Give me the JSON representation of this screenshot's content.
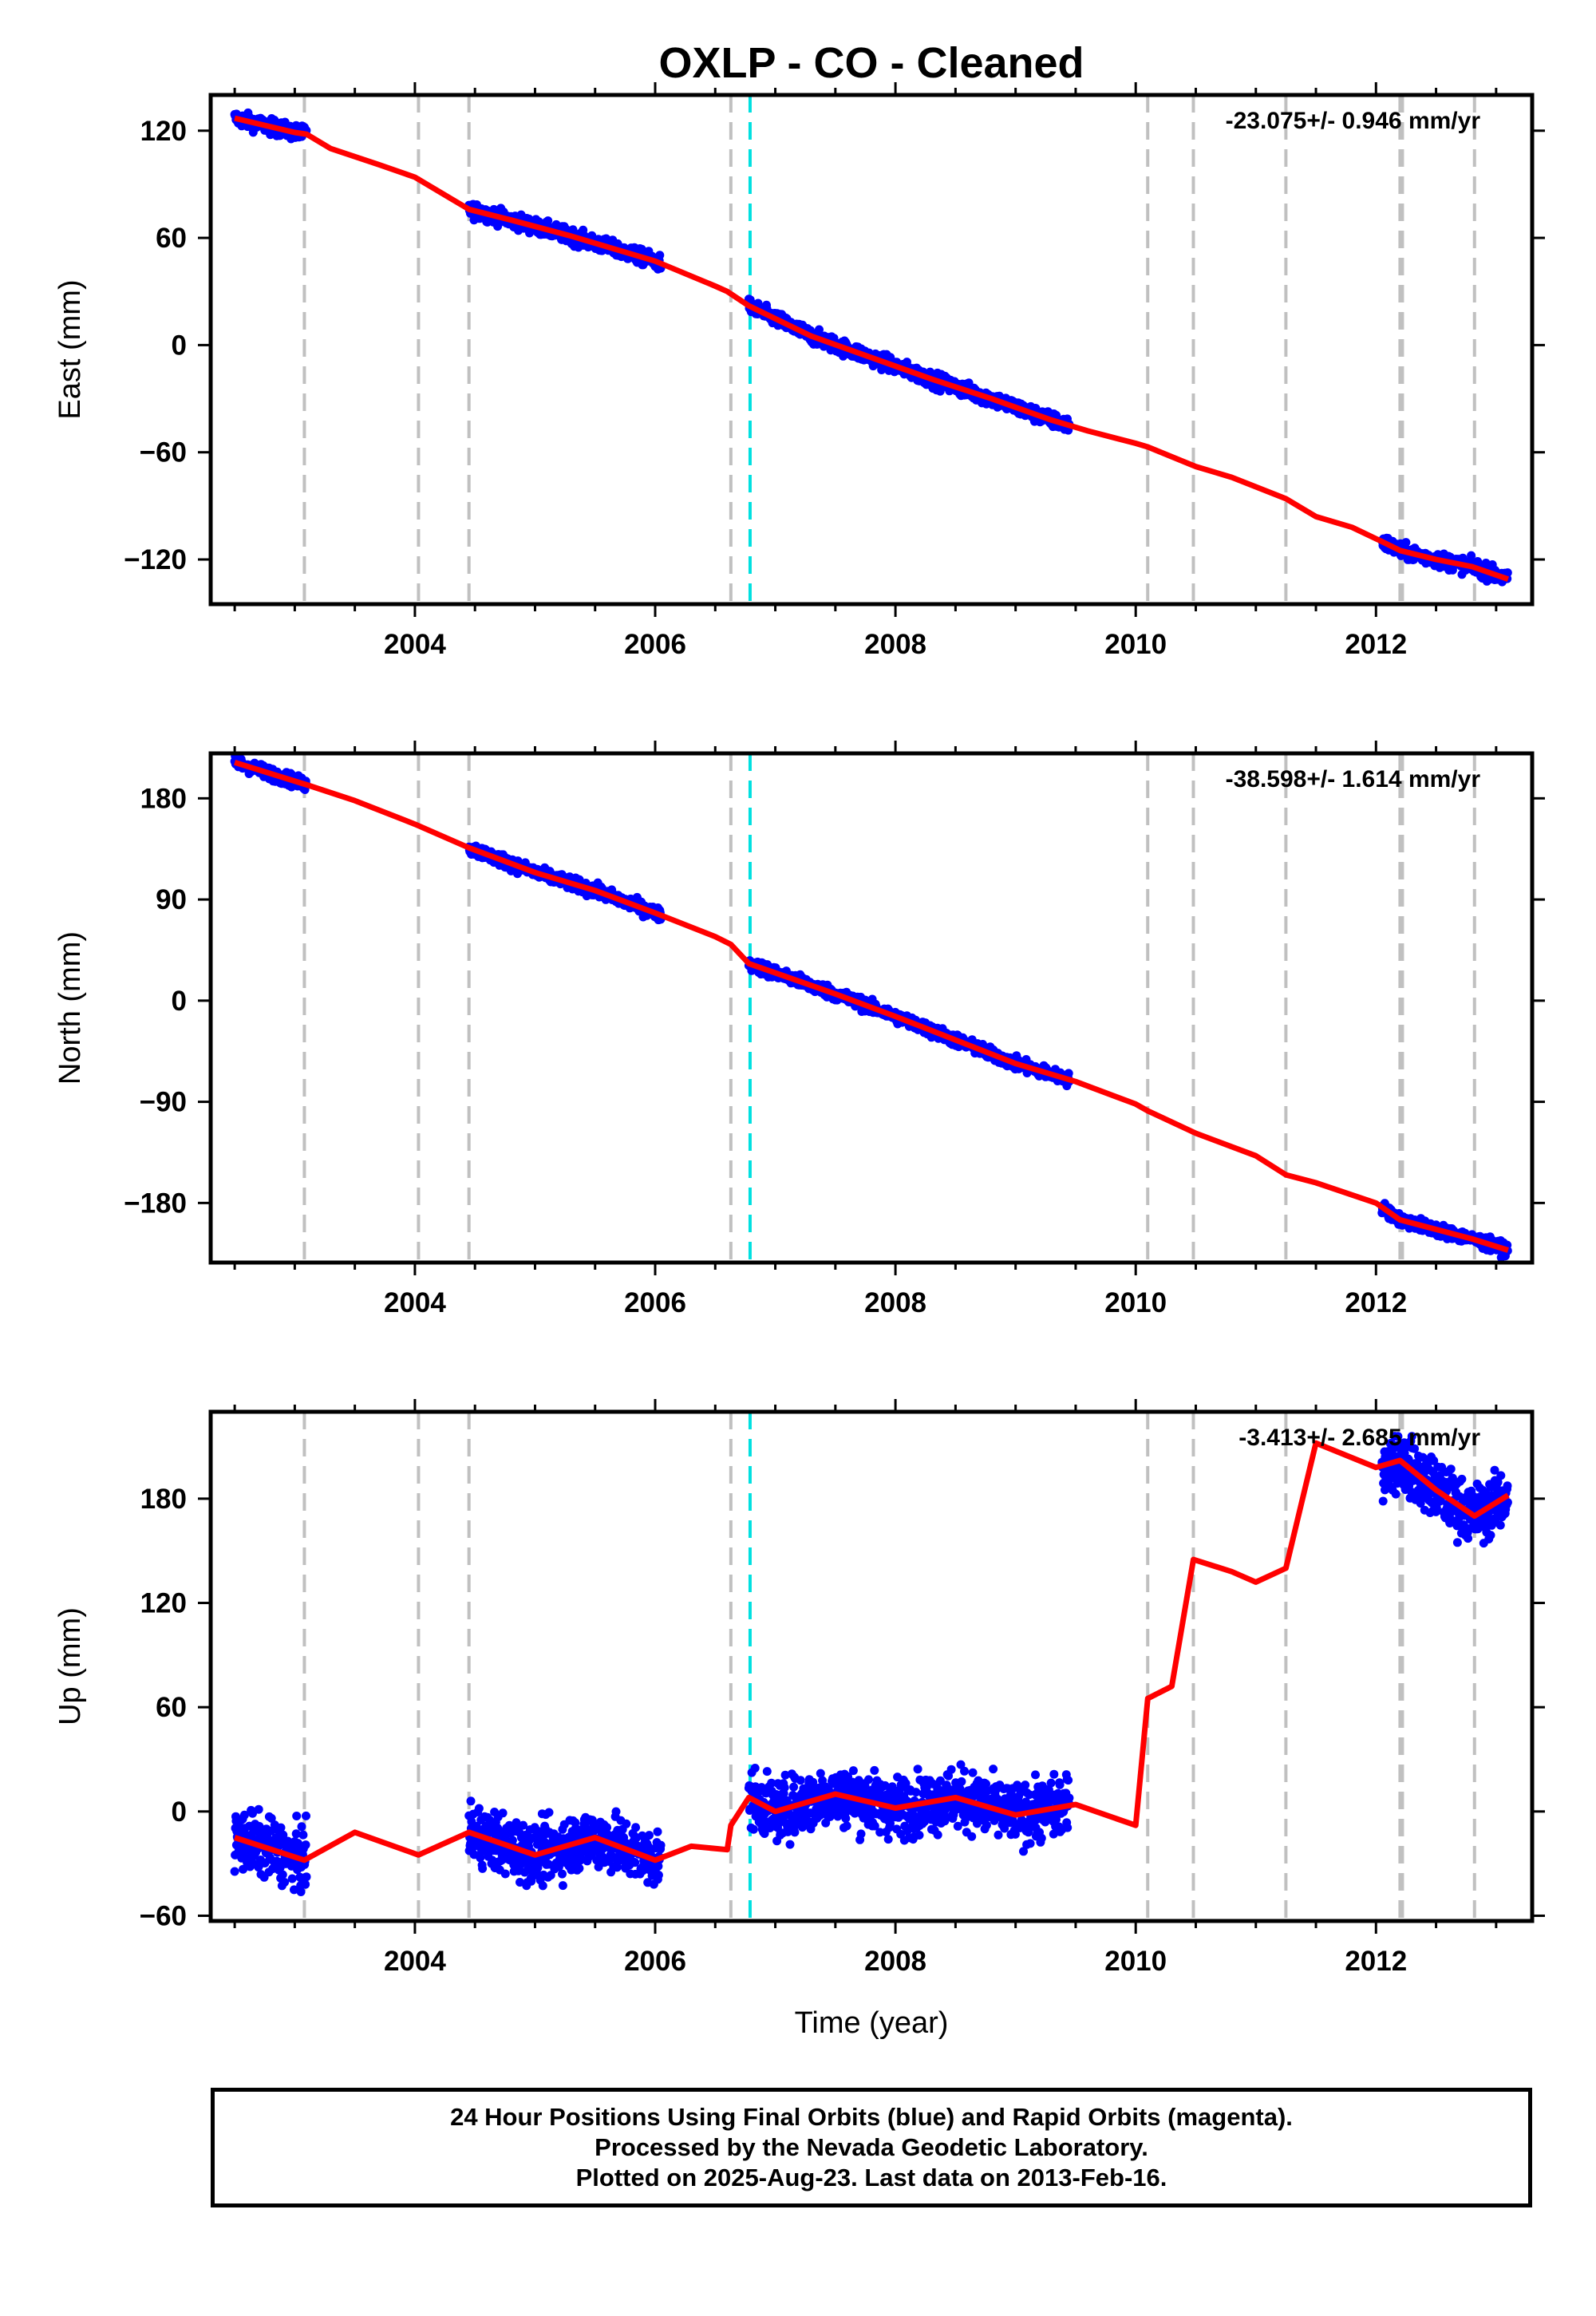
{
  "title": "OXLP  - CO - Cleaned",
  "footer": {
    "line1": "24 Hour Positions Using Final Orbits (blue) and Rapid Orbits (magenta).",
    "line2": "Processed by the Nevada Geodetic Laboratory.",
    "line3": "Plotted on 2025-Aug-23. Last data on 2013-Feb-16."
  },
  "colors": {
    "data": "#0000ff",
    "model": "#ff0000",
    "step_gray": "#c0c0c0",
    "step_cyan": "#00e0e0"
  },
  "chart_data": [
    {
      "type": "scatter",
      "component": "east",
      "ylabel": "East (mm)",
      "xlabel": "",
      "rate_label": "-23.075+/- 0.946 mm/yr",
      "xlim": [
        2002.3,
        2013.3
      ],
      "ylim": [
        -145,
        140
      ],
      "xticks": [
        2004,
        2006,
        2008,
        2010,
        2012
      ],
      "yticks": [
        -120,
        -60,
        0,
        60,
        120
      ],
      "data_segments": [
        {
          "x": [
            2002.5,
            2003.1
          ],
          "y": [
            130,
            115
          ]
        },
        {
          "x": [
            2004.45,
            2006.05
          ],
          "y": [
            75,
            50
          ]
        },
        {
          "x": [
            2006.78,
            2009.45
          ],
          "y": [
            22,
            -45
          ]
        },
        {
          "x": [
            2012.05,
            2013.1
          ],
          "y": [
            -110,
            -133
          ]
        }
      ],
      "model": {
        "x": [
          2002.5,
          2003.0,
          2003.1,
          2003.3,
          2003.7,
          2004.0,
          2004.45,
          2004.8,
          2005.3,
          2005.8,
          2006.0,
          2006.5,
          2006.6,
          2006.78,
          2007.3,
          2007.8,
          2008.3,
          2008.8,
          2009.3,
          2009.6,
          2010.0,
          2010.1,
          2010.5,
          2010.8,
          2011.25,
          2011.5,
          2011.8,
          2012.05,
          2012.2,
          2012.5,
          2012.8,
          2013.1
        ],
        "y": [
          127,
          119,
          118,
          110,
          101,
          94,
          76,
          70,
          61,
          51,
          47,
          33,
          30,
          22,
          5,
          -7,
          -19,
          -30,
          -42,
          -48,
          -55,
          -57,
          -68,
          -74,
          -86,
          -96,
          -102,
          -110,
          -115,
          -120,
          -124,
          -131
        ]
      },
      "steps": [
        2003.08,
        2004.03,
        2004.45,
        2006.63,
        2010.1,
        2010.48,
        2011.25,
        2012.2,
        2012.22,
        2012.82
      ],
      "cyan_step": 2006.79
    },
    {
      "type": "scatter",
      "component": "north",
      "ylabel": "North (mm)",
      "xlabel": "",
      "rate_label": "-38.598+/- 1.614 mm/yr",
      "xlim": [
        2002.3,
        2013.3
      ],
      "ylim": [
        -233,
        220
      ],
      "xticks": [
        2004,
        2006,
        2008,
        2010,
        2012
      ],
      "yticks": [
        -180,
        -90,
        0,
        90,
        180
      ],
      "data_segments": [
        {
          "x": [
            2002.5,
            2003.1
          ],
          "y": [
            215,
            195
          ]
        },
        {
          "x": [
            2004.45,
            2006.05
          ],
          "y": [
            130,
            82
          ]
        },
        {
          "x": [
            2006.78,
            2009.45
          ],
          "y": [
            35,
            -75
          ]
        },
        {
          "x": [
            2012.05,
            2013.1
          ],
          "y": [
            -180,
            -222
          ]
        }
      ],
      "model": {
        "x": [
          2002.5,
          2003.1,
          2003.5,
          2004.0,
          2004.45,
          2005.0,
          2005.5,
          2006.0,
          2006.5,
          2006.63,
          2006.78,
          2007.5,
          2008.0,
          2008.5,
          2009.0,
          2009.5,
          2010.0,
          2010.1,
          2010.5,
          2011.0,
          2011.25,
          2011.5,
          2012.0,
          2012.2,
          2012.8,
          2013.1
        ],
        "y": [
          212,
          192,
          178,
          157,
          136,
          114,
          98,
          78,
          57,
          50,
          33,
          6,
          -14,
          -35,
          -56,
          -72,
          -92,
          -98,
          -118,
          -138,
          -155,
          -162,
          -180,
          -195,
          -212,
          -222
        ]
      },
      "steps": [
        2003.08,
        2004.03,
        2004.45,
        2006.63,
        2010.1,
        2010.48,
        2011.25,
        2012.2,
        2012.22,
        2012.82
      ],
      "cyan_step": 2006.79
    },
    {
      "type": "scatter",
      "component": "up",
      "ylabel": "Up (mm)",
      "xlabel": "Time (year)",
      "rate_label": "-3.413+/- 2.685 mm/yr",
      "xlim": [
        2002.3,
        2013.3
      ],
      "ylim": [
        -63,
        230
      ],
      "xticks": [
        2004,
        2006,
        2008,
        2010,
        2012
      ],
      "yticks": [
        -60,
        0,
        60,
        120,
        180
      ],
      "data_segments": [
        {
          "x": [
            2002.5,
            2003.1
          ],
          "y": [
            -20,
            -20
          ]
        },
        {
          "x": [
            2004.45,
            2006.05
          ],
          "y": [
            -15,
            -25
          ]
        },
        {
          "x": [
            2006.78,
            2009.45
          ],
          "y": [
            5,
            0
          ]
        },
        {
          "x": [
            2012.05,
            2013.1
          ],
          "y": [
            195,
            180
          ]
        }
      ],
      "model": {
        "x": [
          2002.5,
          2003.08,
          2003.5,
          2004.03,
          2004.45,
          2005.0,
          2005.5,
          2006.0,
          2006.3,
          2006.6,
          2006.63,
          2006.78,
          2007.0,
          2007.5,
          2008.0,
          2008.5,
          2009.0,
          2009.5,
          2010.0,
          2010.1,
          2010.3,
          2010.48,
          2010.8,
          2011.0,
          2011.25,
          2011.5,
          2012.0,
          2012.2,
          2012.5,
          2012.82,
          2013.1
        ],
        "y": [
          -15,
          -28,
          -12,
          -25,
          -12,
          -25,
          -15,
          -28,
          -20,
          -22,
          -8,
          8,
          0,
          10,
          2,
          8,
          -2,
          4,
          -8,
          65,
          72,
          145,
          138,
          132,
          140,
          212,
          198,
          202,
          185,
          170,
          182
        ]
      },
      "steps": [
        2003.08,
        2004.03,
        2004.45,
        2006.63,
        2010.1,
        2010.48,
        2011.25,
        2012.2,
        2012.22,
        2012.82
      ],
      "cyan_step": 2006.79
    }
  ]
}
